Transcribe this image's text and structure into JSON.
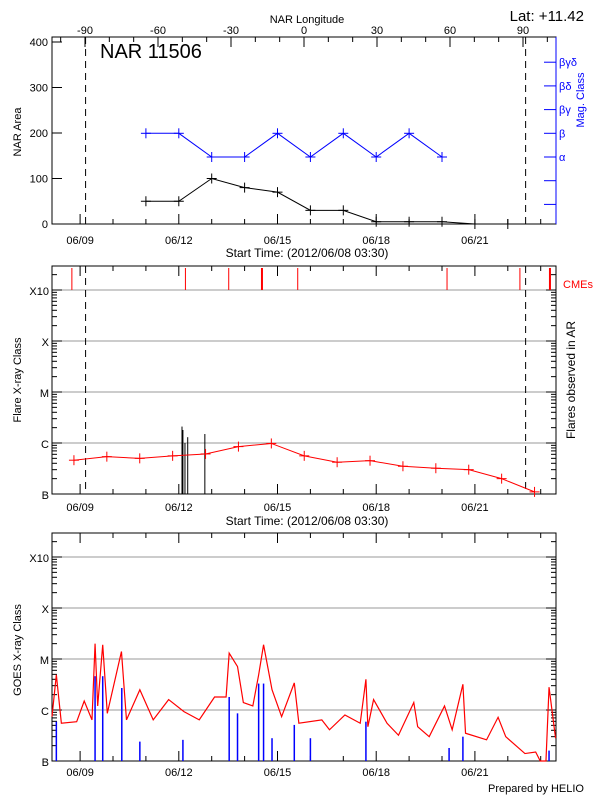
{
  "header": {
    "lat_label": "Lat: +11.42"
  },
  "footer": {
    "credit": "Prepared by HELIO"
  },
  "colors": {
    "area": "#000000",
    "mag_class": "#0000ff",
    "flares": "#ff0000",
    "cme": "#ff0000",
    "goes_long": "#ff0000",
    "goes_short": "#0000ff",
    "grid": "#999999"
  },
  "chart_data": [
    {
      "type": "line",
      "title": "NAR 11506",
      "xlabel": "Start Time: (2012/06/08 03:30)",
      "ylabel": "NAR Area",
      "y2label": "Mag. Class",
      "top_axis_label": "NAR Longitude",
      "top_ticks": [
        "-90",
        "-60",
        "-30",
        "0",
        "30",
        "60",
        "90"
      ],
      "x_ticks": [
        "06/09",
        "06/12",
        "06/15",
        "06/18",
        "06/21"
      ],
      "x_range": [
        "06/08 03:30",
        "06/23 11:00"
      ],
      "y_ticks": [
        "0",
        "100",
        "200",
        "300",
        "400"
      ],
      "ylim": [
        0,
        400
      ],
      "y2_ticks": [
        "α",
        "β",
        "βγ",
        "βδ",
        "βγδ"
      ],
      "limb_markers": [
        "06/09 04:00",
        "06/22 13:00"
      ],
      "series": [
        {
          "key": "area",
          "x": [
            "06/11 00:00",
            "06/12 00:00",
            "06/13 00:00",
            "06/14 00:00",
            "06/15 00:00",
            "06/16 00:00",
            "06/17 00:00",
            "06/18 00:00",
            "06/19 00:00",
            "06/20 00:00",
            "06/21 00:00",
            "06/22 00:00"
          ],
          "values": [
            50,
            50,
            100,
            80,
            70,
            30,
            30,
            5,
            5,
            5,
            0,
            0
          ]
        },
        {
          "key": "mag_class",
          "x": [
            "06/11 00:00",
            "06/12 00:00",
            "06/13 00:00",
            "06/14 00:00",
            "06/15 00:00",
            "06/16 00:00",
            "06/17 00:00",
            "06/18 00:00",
            "06/19 00:00",
            "06/20 00:00"
          ],
          "values": [
            "β",
            "β",
            "α",
            "α",
            "β",
            "α",
            "β",
            "α",
            "β",
            "α"
          ]
        }
      ]
    },
    {
      "type": "line",
      "xlabel": "Start Time: (2012/06/08 03:30)",
      "ylabel": "Flare X-ray Class",
      "y2label": "Flares observed in AR",
      "cme_label": "CMEs",
      "x_ticks": [
        "06/09",
        "06/12",
        "06/15",
        "06/18",
        "06/21"
      ],
      "y_ticks": [
        "B",
        "C",
        "M",
        "X",
        "X10"
      ],
      "y_scale": "log",
      "grid": true,
      "limb_markers": [
        "06/09 04:00",
        "06/22 13:00"
      ],
      "cmes": [
        {
          "t": "06/08 18:00",
          "w": 1
        },
        {
          "t": "06/12 04:50",
          "w": 1
        },
        {
          "t": "06/13 12:25",
          "w": 1
        },
        {
          "t": "06/14 12:40",
          "w": 2
        },
        {
          "t": "06/15 14:45",
          "w": 1
        },
        {
          "t": "06/20 03:40",
          "w": 1
        },
        {
          "t": "06/22 08:50",
          "w": 1
        },
        {
          "t": "06/23 06:45",
          "w": 2
        }
      ],
      "flares": [
        {
          "t": "06/12 02:20",
          "class": "C2.1"
        },
        {
          "t": "06/12 03:00",
          "class": "C1.8"
        },
        {
          "t": "06/12 04:30",
          "class": "C1.0"
        },
        {
          "t": "06/12 06:30",
          "class": "C1.3"
        },
        {
          "t": "06/12 19:00",
          "class": "C1.5"
        }
      ],
      "series": [
        {
          "key": "daily_flux",
          "x": [
            "06/08 19:30",
            "06/09 19:30",
            "06/10 19:30",
            "06/11 19:30",
            "06/12 19:30",
            "06/13 19:30",
            "06/14 19:30",
            "06/15 19:30",
            "06/16 19:30",
            "06/17 19:30",
            "06/18 19:30",
            "06/19 19:30",
            "06/20 19:30",
            "06/21 19:30",
            "06/22 19:30"
          ],
          "values": [
            "B4.6",
            "B5.4",
            "B5.0",
            "B5.6",
            "B6.1",
            "B8.5",
            "B9.8",
            "B5.6",
            "B4.2",
            "B4.5",
            "B3.5",
            "B3.2",
            "B3.0",
            "B2.0",
            "B1.1"
          ]
        }
      ]
    },
    {
      "type": "line",
      "ylabel": "GOES X-ray Class",
      "x_ticks": [
        "06/09",
        "06/12",
        "06/15",
        "06/18",
        "06/21"
      ],
      "y_ticks": [
        "B",
        "C",
        "M",
        "X",
        "X10"
      ],
      "y_scale": "log",
      "grid": true,
      "series": [
        {
          "key": "goes_long",
          "x": [
            "06/08 03:30",
            "06/08 06:40",
            "06/08 10:20",
            "06/08 21:30",
            "06/09 03:00",
            "06/09 08:40",
            "06/09 10:55",
            "06/09 12:50",
            "06/09 16:30",
            "06/09 19:50",
            "06/10 06:10",
            "06/10 09:50",
            "06/10 19:35",
            "06/11 05:20",
            "06/11 16:35",
            "06/12 03:45",
            "06/12 14:55",
            "06/13 02:05",
            "06/13 10:30",
            "06/13 12:45",
            "06/13 18:50",
            "06/13 23:05",
            "06/14 06:00",
            "06/14 10:15",
            "06/14 13:50",
            "06/14 20:00",
            "06/15 03:00",
            "06/15 12:15",
            "06/15 15:35",
            "06/16 08:20",
            "06/16 13:55",
            "06/17 01:10",
            "06/17 12:20",
            "06/17 16:30",
            "06/17 17:55",
            "06/17 22:05",
            "06/18 07:55",
            "06/18 16:15",
            "06/19 03:25",
            "06/19 06:15",
            "06/19 14:40",
            "06/20 01:50",
            "06/20 07:25",
            "06/20 15:15",
            "06/20 17:10",
            "06/21 08:30",
            "06/21 16:55",
            "06/21 22:30",
            "06/22 12:30",
            "06/22 20:20",
            "06/22 23:40",
            "06/23 03:50",
            "06/23 06:05",
            "06/23 10:50"
          ],
          "values": [
            "B7.4",
            "C4.9",
            "B5.5",
            "B5.9",
            "C1.5",
            "B6.4",
            "M2.0",
            "C1.2",
            "M1.9",
            "B8.6",
            "M1.4",
            "B6.4",
            "C2.5",
            "B6.4",
            "C1.6",
            "B9.3",
            "B6.4",
            "C1.8",
            "C1.8",
            "M1.3",
            "C7.1",
            "C1.4",
            "C1.2",
            "C4.9",
            "M1.9",
            "C2.5",
            "B7.4",
            "C3.4",
            "B5.5",
            "B6.4",
            "B4.1",
            "B8.0",
            "B5.5",
            "C4.0",
            "B4.7",
            "C1.6",
            "B5.5",
            "B3.2",
            "C1.4",
            "B4.7",
            "B3.0",
            "C1.2",
            "B4.1",
            "C3.2",
            "B3.5",
            "B2.6",
            "B7.2",
            "B3.0",
            "B1.4",
            "B1.5",
            "B1.0",
            "B1.0",
            "C2.8",
            "B2.8"
          ]
        },
        {
          "key": "goes_short_spikes",
          "x": [
            "06/08 06:40",
            "06/09 10:55",
            "06/09 16:30",
            "06/10 06:25",
            "06/10 19:35",
            "06/12 03:00",
            "06/13 12:45",
            "06/13 18:50",
            "06/14 10:15",
            "06/14 13:50",
            "06/14 20:00",
            "06/15 12:15",
            "06/16 00:00",
            "06/17 16:30",
            "06/20 05:10",
            "06/20 15:15",
            "06/23 06:05"
          ],
          "values": [
            "B5.9",
            "C4.6",
            "C4.6",
            "C2.7",
            "B2.4",
            "B2.6",
            "C1.8",
            "B8.6",
            "C3.3",
            "C3.3",
            "B2.8",
            "B5.1",
            "B2.8",
            "B5.9",
            "B1.8",
            "B3.0",
            "B1.6"
          ]
        }
      ]
    }
  ]
}
